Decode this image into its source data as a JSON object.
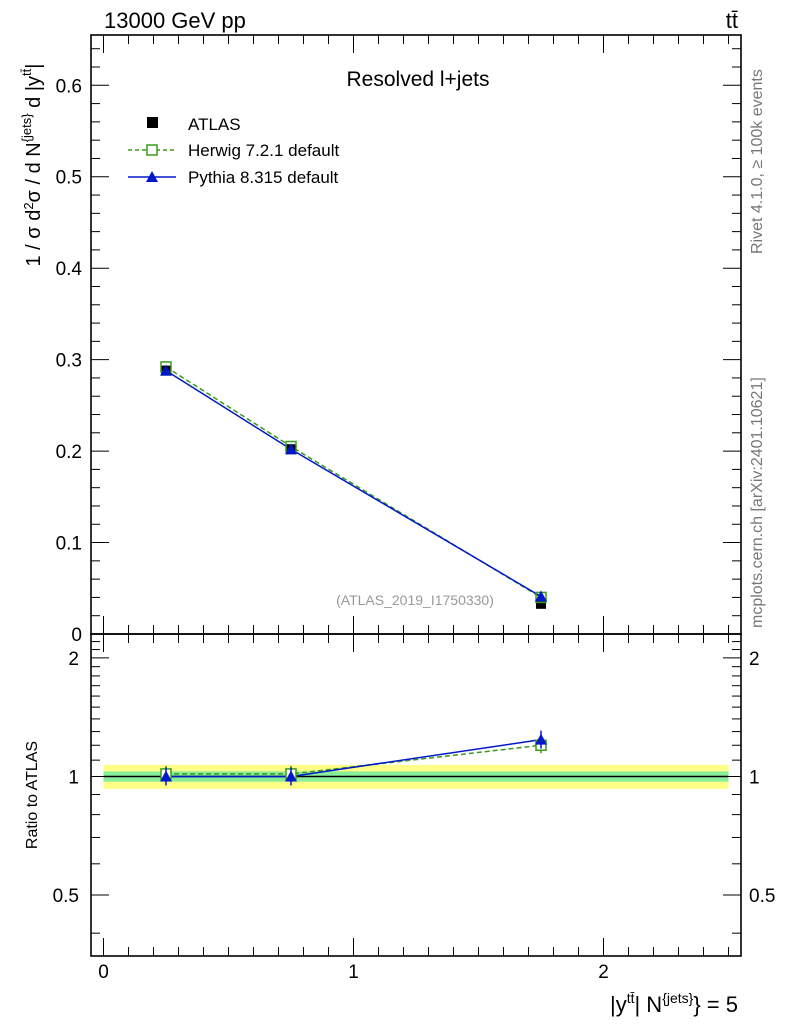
{
  "header": {
    "energy_label": "13000 GeV pp",
    "process_label": "tt̄"
  },
  "side_text": {
    "rivet": "Rivet 4.1.0, ≥ 100k events",
    "mcplots": "mcplots.cern.ch [arXiv:2401.10621]"
  },
  "chart_data": [
    {
      "type": "line",
      "panel": "main",
      "title": "Resolved l+jets",
      "analysis_id": "(ATLAS_2019_I1750330)",
      "ylabel": "1 / σ d²σ / d N^{jets} d |y^{tt̄}|",
      "xlim": [
        -0.05,
        2.55
      ],
      "ylim": [
        0,
        0.655
      ],
      "y_ticks": [
        "0",
        "0.1",
        "0.2",
        "0.3",
        "0.4",
        "0.5",
        "0.6"
      ],
      "legend_position": "top-left",
      "x": [
        0.25,
        0.75,
        1.75
      ],
      "bin_edges": [
        0,
        0.5,
        1.0,
        2.5
      ],
      "series": [
        {
          "name": "ATLAS",
          "style": "data",
          "color": "#000000",
          "values": [
            0.288,
            0.202,
            0.033
          ]
        },
        {
          "name": "Herwig 7.2.1 default",
          "style": "dashed-open-square",
          "color": "#3a9a1a",
          "values": [
            0.292,
            0.205,
            0.04
          ]
        },
        {
          "name": "Pythia 8.315 default",
          "style": "solid-triangle",
          "color": "#0018c8",
          "values": [
            0.288,
            0.202,
            0.041
          ]
        }
      ]
    },
    {
      "type": "line",
      "panel": "ratio",
      "ylabel": "Ratio to ATLAS",
      "xlabel": "|y^{tt̄}| N^{jets} = 5",
      "xlim": [
        -0.05,
        2.55
      ],
      "ylim": [
        0.35,
        2.3
      ],
      "y_ticks": [
        "0.5",
        "1",
        "2"
      ],
      "x_ticks": [
        "0",
        "1",
        "2"
      ],
      "band_colors": {
        "inner": "#88ee99",
        "outer": "#ffff88"
      },
      "band_half_width": {
        "inner": 0.03,
        "outer": 0.07
      },
      "x": [
        0.25,
        0.75,
        1.75
      ],
      "series": [
        {
          "name": "Herwig 7.2.1 default",
          "color": "#3a9a1a",
          "values": [
            1.015,
            1.015,
            1.2
          ]
        },
        {
          "name": "Pythia 8.315 default",
          "color": "#0018c8",
          "values": [
            1.0,
            1.0,
            1.24
          ]
        }
      ]
    }
  ]
}
